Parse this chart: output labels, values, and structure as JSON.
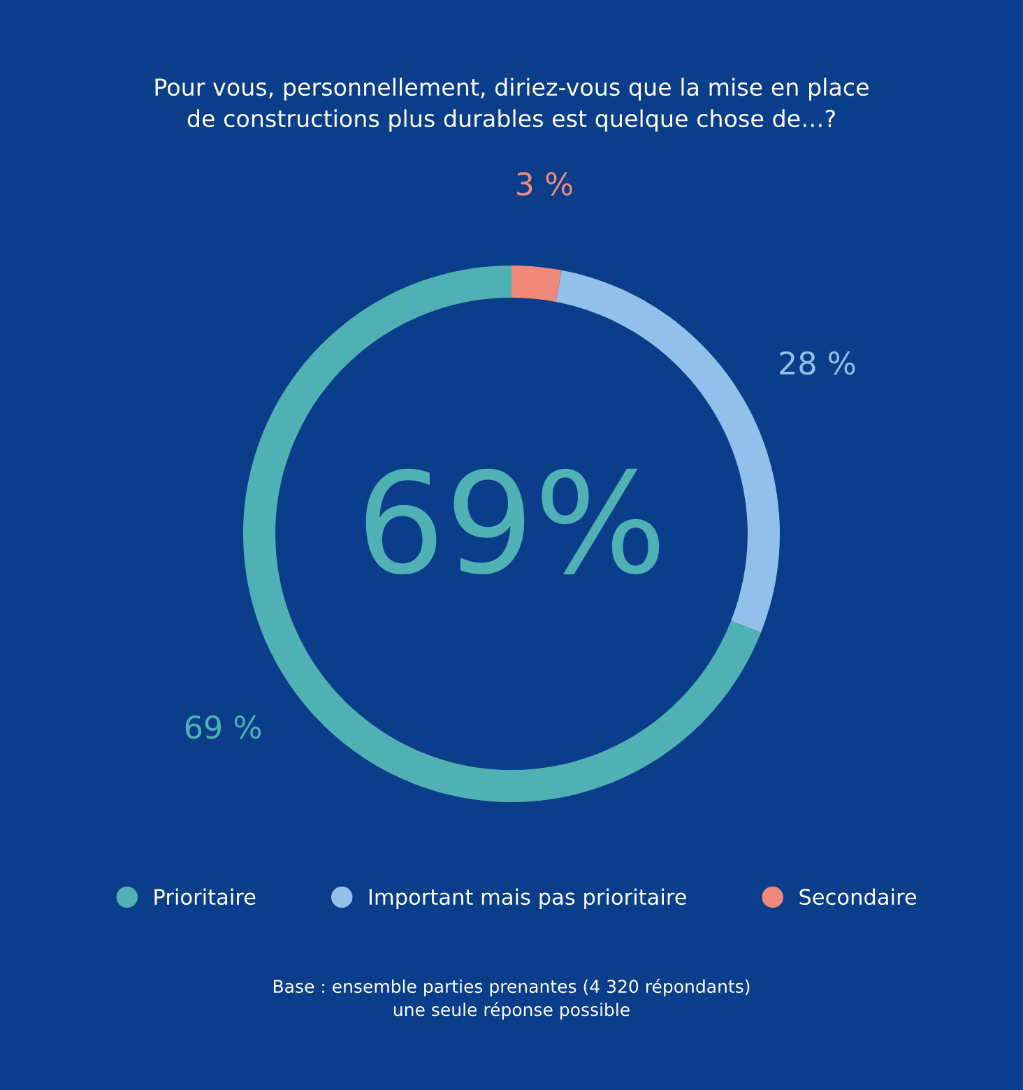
{
  "chart_data": {
    "type": "donut",
    "title": "Pour vous, personnellement, diriez-vous que la mise en place\nde constructions plus durables est quelque chose de…?",
    "categories": [
      "Prioritaire",
      "Important mais pas prioritaire",
      "Secondaire"
    ],
    "values": [
      69,
      28,
      3
    ],
    "colors": [
      "#4fb1b3",
      "#93c0ea",
      "#f0897a"
    ],
    "value_labels": [
      "69 %",
      "28 %",
      "3 %"
    ],
    "legend": "bottom",
    "annotations": [
      "69%",
      "Base : ensemble parties prenantes (4 320 répondants)\nune seule réponse possible"
    ]
  }
}
